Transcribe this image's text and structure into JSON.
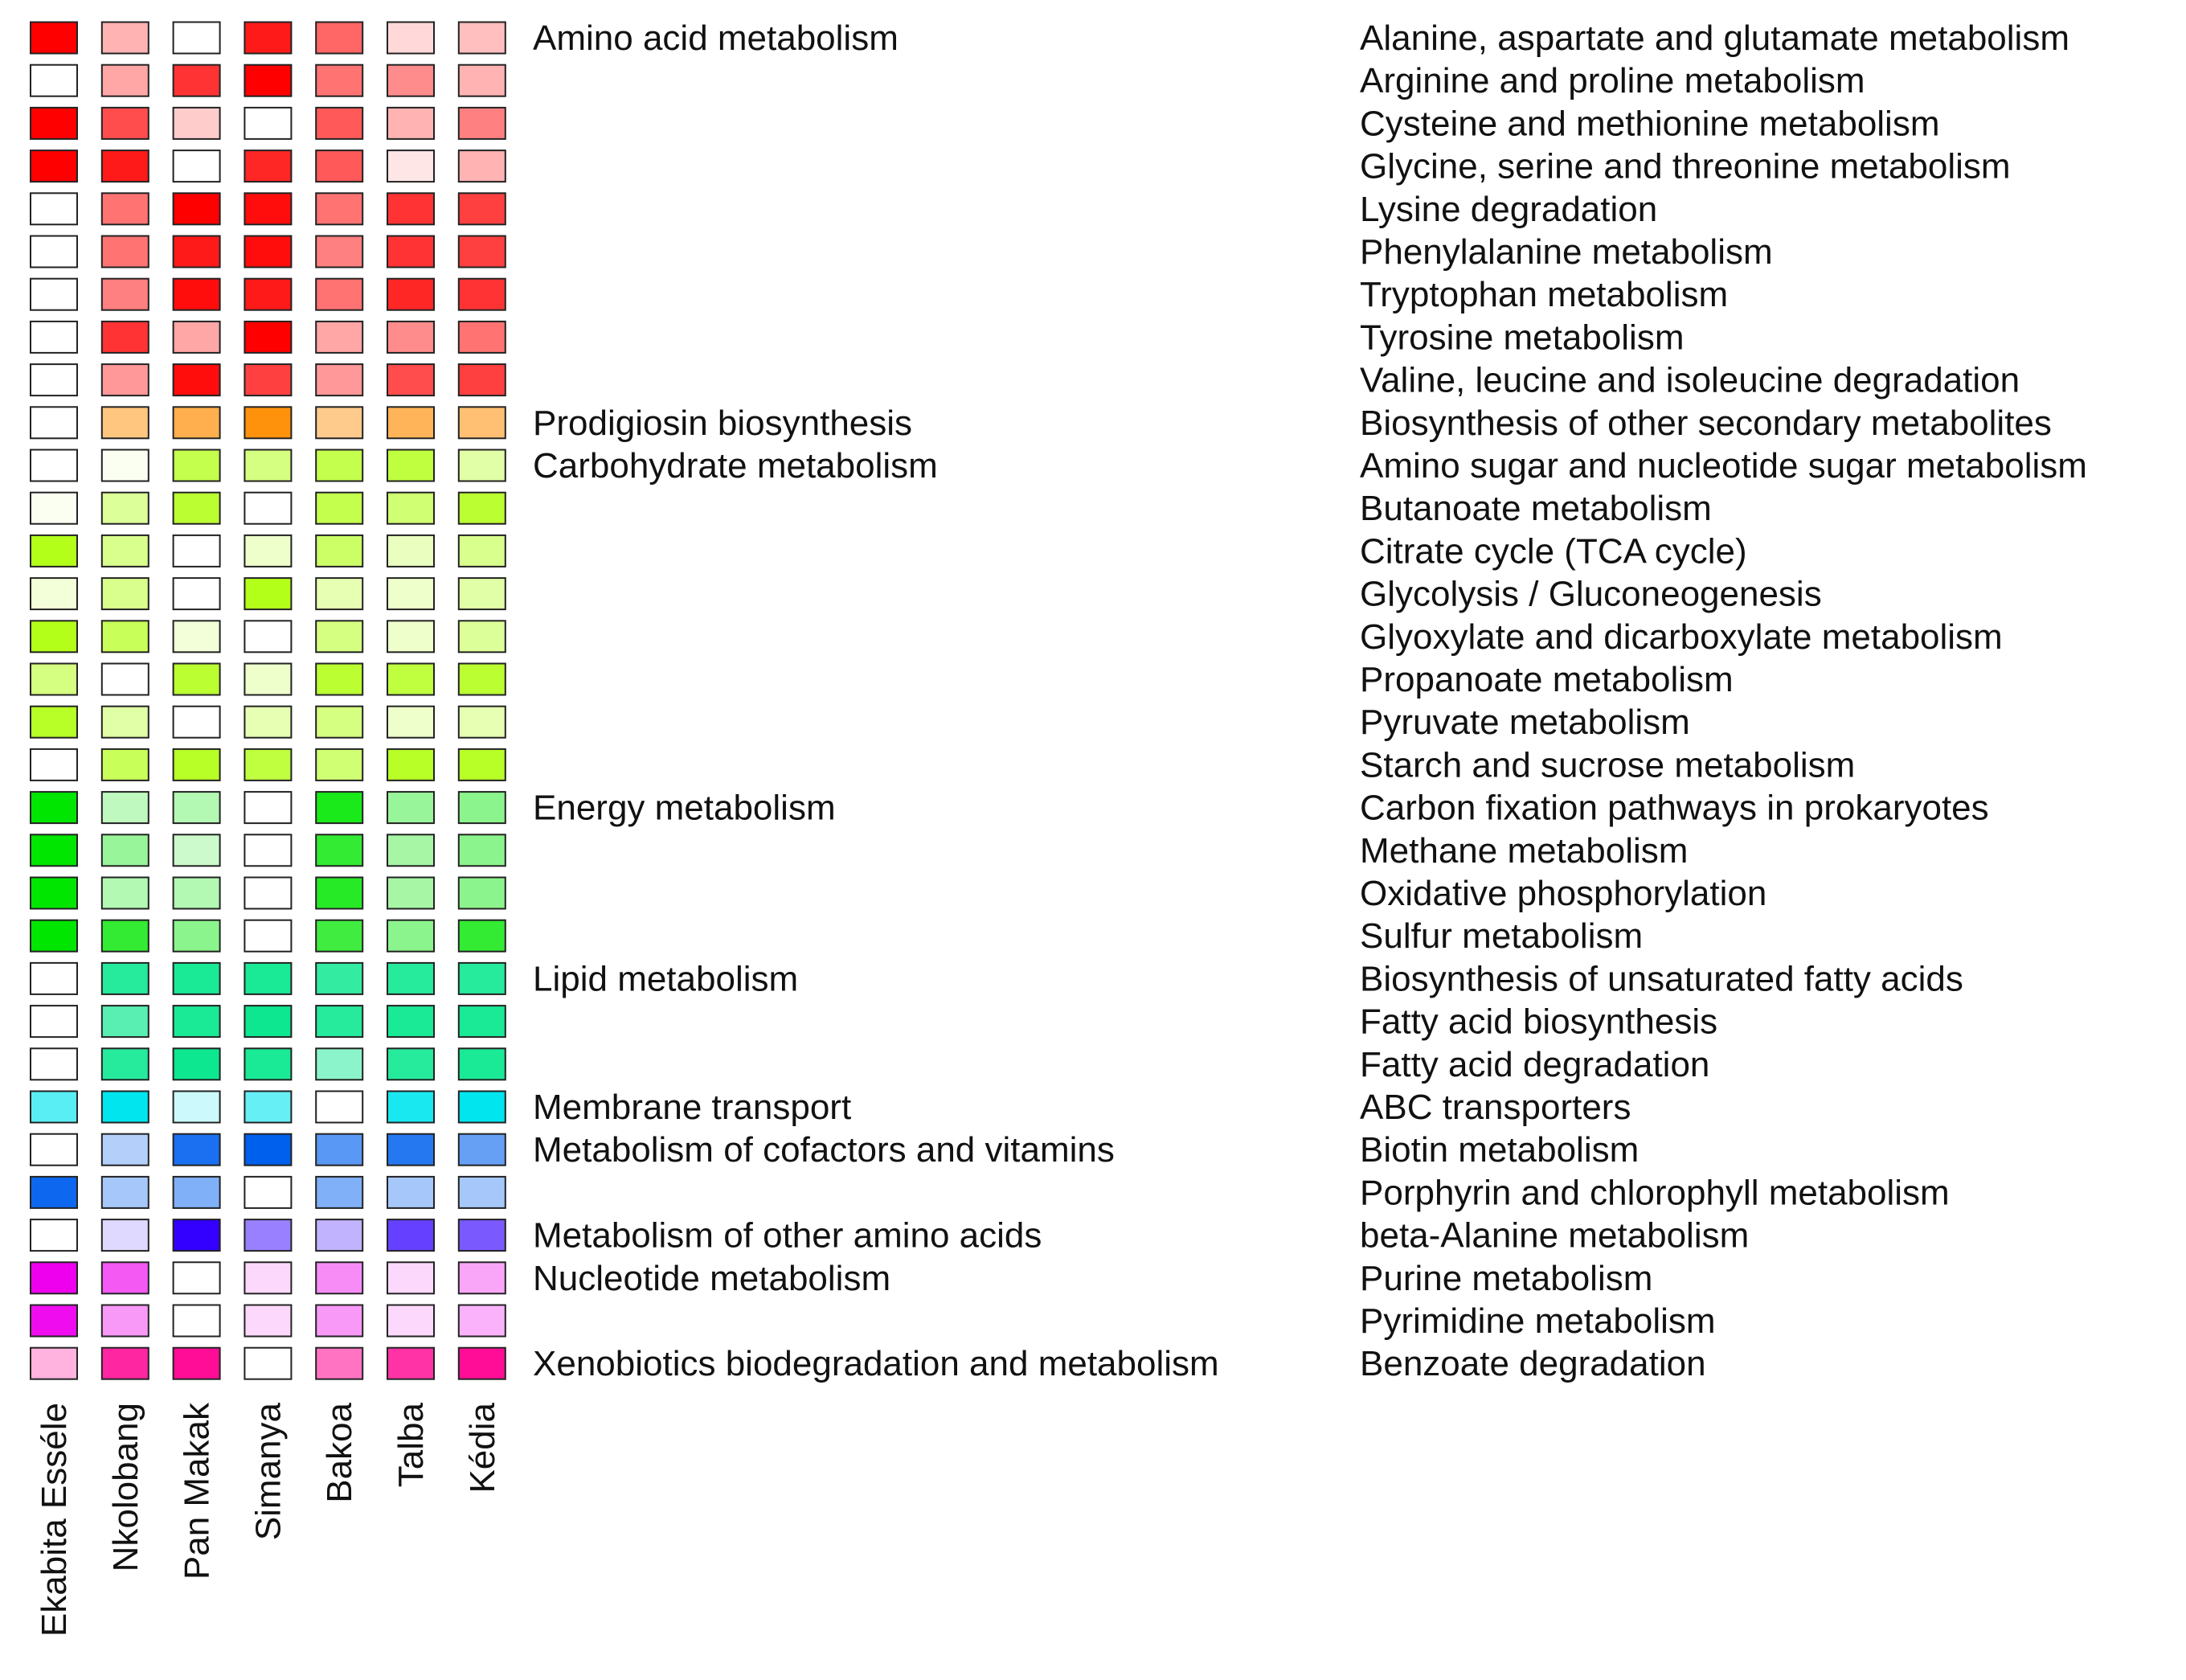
{
  "chart_data": {
    "type": "heatmap",
    "title": "",
    "columns": [
      "Ekabita Esséle",
      "Nkolobang",
      "Pan Makak",
      "Simanya",
      "Bakoa",
      "Talba",
      "Kédia"
    ],
    "categories": [
      {
        "name": "Amino acid metabolism",
        "row_start": 0
      },
      {
        "name": "Prodigiosin biosynthesis",
        "row_start": 9
      },
      {
        "name": "Carbohydrate metabolism",
        "row_start": 10
      },
      {
        "name": "Energy metabolism",
        "row_start": 18
      },
      {
        "name": "Lipid metabolism",
        "row_start": 22
      },
      {
        "name": "Membrane transport",
        "row_start": 25
      },
      {
        "name": "Metabolism of cofactors and vitamins",
        "row_start": 26
      },
      {
        "name": "Metabolism of other amino acids",
        "row_start": 28
      },
      {
        "name": "Nucleotide metabolism",
        "row_start": 29
      },
      {
        "name": "Xenobiotics biodegradation and metabolism",
        "row_start": 31
      }
    ],
    "rows": [
      {
        "pathway": "Alanine, aspartate and glutamate metabolism",
        "base_color": "#ff0000",
        "intensity": [
          1.0,
          0.3,
          0.0,
          0.9,
          0.6,
          0.15,
          0.25
        ]
      },
      {
        "pathway": "Arginine and proline metabolism",
        "base_color": "#ff0000",
        "intensity": [
          0.0,
          0.35,
          0.8,
          1.0,
          0.55,
          0.45,
          0.3
        ]
      },
      {
        "pathway": "Cysteine and methionine metabolism",
        "base_color": "#ff0000",
        "intensity": [
          1.0,
          0.7,
          0.2,
          0.0,
          0.65,
          0.3,
          0.5
        ]
      },
      {
        "pathway": "Glycine, serine and threonine metabolism",
        "base_color": "#ff0000",
        "intensity": [
          1.0,
          0.9,
          0.0,
          0.85,
          0.65,
          0.1,
          0.3
        ]
      },
      {
        "pathway": "Lysine degradation",
        "base_color": "#ff0000",
        "intensity": [
          0.0,
          0.55,
          1.0,
          0.95,
          0.55,
          0.8,
          0.75
        ]
      },
      {
        "pathway": "Phenylalanine metabolism",
        "base_color": "#ff0000",
        "intensity": [
          0.0,
          0.55,
          0.9,
          0.95,
          0.5,
          0.8,
          0.75
        ]
      },
      {
        "pathway": "Tryptophan metabolism",
        "base_color": "#ff0000",
        "intensity": [
          0.0,
          0.5,
          0.95,
          0.9,
          0.55,
          0.85,
          0.8
        ]
      },
      {
        "pathway": "Tyrosine metabolism",
        "base_color": "#ff0000",
        "intensity": [
          0.0,
          0.8,
          0.35,
          1.0,
          0.35,
          0.45,
          0.55
        ]
      },
      {
        "pathway": "Valine, leucine and isoleucine degradation",
        "base_color": "#ff0000",
        "intensity": [
          0.0,
          0.4,
          0.95,
          0.75,
          0.4,
          0.7,
          0.75
        ]
      },
      {
        "pathway": "Biosynthesis of other secondary metabolites",
        "base_color": "#ff8c00",
        "intensity": [
          0.0,
          0.5,
          0.7,
          0.95,
          0.45,
          0.65,
          0.55
        ]
      },
      {
        "pathway": "Amino sugar and nucleotide sugar metabolism",
        "base_color": "#aaff00",
        "intensity": [
          0.0,
          0.05,
          0.7,
          0.5,
          0.7,
          0.75,
          0.35
        ]
      },
      {
        "pathway": "Butanoate metabolism",
        "base_color": "#aaff00",
        "intensity": [
          0.05,
          0.4,
          0.8,
          0.0,
          0.7,
          0.55,
          0.8
        ]
      },
      {
        "pathway": "Citrate cycle (TCA cycle)",
        "base_color": "#aaff00",
        "intensity": [
          0.9,
          0.45,
          0.0,
          0.2,
          0.6,
          0.25,
          0.45
        ]
      },
      {
        "pathway": "Glycolysis / Gluconeogenesis",
        "base_color": "#aaff00",
        "intensity": [
          0.15,
          0.45,
          0.0,
          0.9,
          0.3,
          0.2,
          0.35
        ]
      },
      {
        "pathway": "Glyoxylate and dicarboxylate metabolism",
        "base_color": "#aaff00",
        "intensity": [
          0.9,
          0.65,
          0.15,
          0.0,
          0.5,
          0.2,
          0.4
        ]
      },
      {
        "pathway": "Propanoate metabolism",
        "base_color": "#aaff00",
        "intensity": [
          0.5,
          0.0,
          0.8,
          0.2,
          0.8,
          0.75,
          0.8
        ]
      },
      {
        "pathway": "Pyruvate metabolism",
        "base_color": "#aaff00",
        "intensity": [
          0.85,
          0.35,
          0.0,
          0.3,
          0.5,
          0.2,
          0.3
        ]
      },
      {
        "pathway": "Starch and sucrose metabolism",
        "base_color": "#aaff00",
        "intensity": [
          0.0,
          0.65,
          0.85,
          0.75,
          0.55,
          0.85,
          0.85
        ]
      },
      {
        "pathway": "Carbon fixation pathways in prokaryotes",
        "base_color": "#00e600",
        "intensity": [
          1.0,
          0.25,
          0.3,
          0.0,
          0.9,
          0.4,
          0.45
        ]
      },
      {
        "pathway": "Methane metabolism",
        "base_color": "#00e600",
        "intensity": [
          1.0,
          0.4,
          0.2,
          0.0,
          0.8,
          0.35,
          0.45
        ]
      },
      {
        "pathway": "Oxidative phosphorylation",
        "base_color": "#00e600",
        "intensity": [
          1.0,
          0.3,
          0.3,
          0.0,
          0.85,
          0.35,
          0.45
        ]
      },
      {
        "pathway": "Sulfur metabolism",
        "base_color": "#00e600",
        "intensity": [
          1.0,
          0.8,
          0.45,
          0.0,
          0.75,
          0.45,
          0.8
        ]
      },
      {
        "pathway": "Biosynthesis of unsaturated fatty acids",
        "base_color": "#00e68a",
        "intensity": [
          0.0,
          0.85,
          0.9,
          0.9,
          0.8,
          0.85,
          0.85
        ]
      },
      {
        "pathway": "Fatty acid biosynthesis",
        "base_color": "#00e68a",
        "intensity": [
          0.0,
          0.65,
          0.9,
          0.95,
          0.85,
          0.9,
          0.9
        ]
      },
      {
        "pathway": "Fatty acid degradation",
        "base_color": "#00e68a",
        "intensity": [
          0.0,
          0.85,
          0.95,
          0.9,
          0.45,
          0.85,
          0.9
        ]
      },
      {
        "pathway": "ABC transporters",
        "base_color": "#00e5ee",
        "intensity": [
          0.65,
          1.0,
          0.2,
          0.6,
          0.0,
          0.9,
          1.0
        ]
      },
      {
        "pathway": "Biotin metabolism",
        "base_color": "#0060ee",
        "intensity": [
          0.0,
          0.3,
          0.9,
          1.0,
          0.65,
          0.85,
          0.6
        ]
      },
      {
        "pathway": "Porphyrin and chlorophyll metabolism",
        "base_color": "#0060ee",
        "intensity": [
          0.95,
          0.35,
          0.5,
          0.0,
          0.5,
          0.35,
          0.35
        ]
      },
      {
        "pathway": "beta-Alanine metabolism",
        "base_color": "#3300ff",
        "intensity": [
          0.0,
          0.15,
          1.0,
          0.5,
          0.3,
          0.75,
          0.65
        ]
      },
      {
        "pathway": "Purine metabolism",
        "base_color": "#ee00ee",
        "intensity": [
          1.0,
          0.65,
          0.0,
          0.15,
          0.45,
          0.15,
          0.35
        ]
      },
      {
        "pathway": "Pyrimidine metabolism",
        "base_color": "#ee00ee",
        "intensity": [
          0.95,
          0.4,
          0.0,
          0.15,
          0.4,
          0.15,
          0.3
        ]
      },
      {
        "pathway": "Benzoate degradation",
        "base_color": "#ff0090",
        "intensity": [
          0.3,
          0.85,
          0.95,
          0.0,
          0.55,
          0.8,
          0.95
        ]
      }
    ]
  }
}
